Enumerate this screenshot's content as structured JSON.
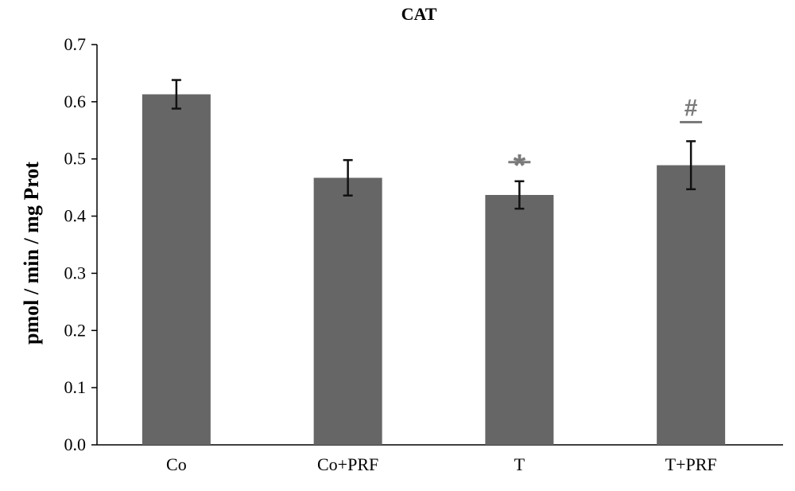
{
  "chart_data": {
    "type": "bar",
    "title": "CAT",
    "xlabel": "",
    "ylabel": "pmol / min / mg Prot",
    "ylim": [
      0,
      0.7
    ],
    "yticks": [
      "0.0",
      "0.1",
      "0.2",
      "0.3",
      "0.4",
      "0.5",
      "0.6",
      "0.7"
    ],
    "categories": [
      "Co",
      "Co+PRF",
      "T",
      "T+PRF"
    ],
    "values": [
      0.613,
      0.467,
      0.437,
      0.489
    ],
    "errors": [
      0.025,
      0.031,
      0.024,
      0.042
    ],
    "annotations": [
      {
        "category": "T",
        "symbol": "*"
      },
      {
        "category": "T+PRF",
        "symbol": "#"
      }
    ],
    "grid": false,
    "bar_color": "#666666",
    "annotation_color": "#7a7a7a"
  }
}
